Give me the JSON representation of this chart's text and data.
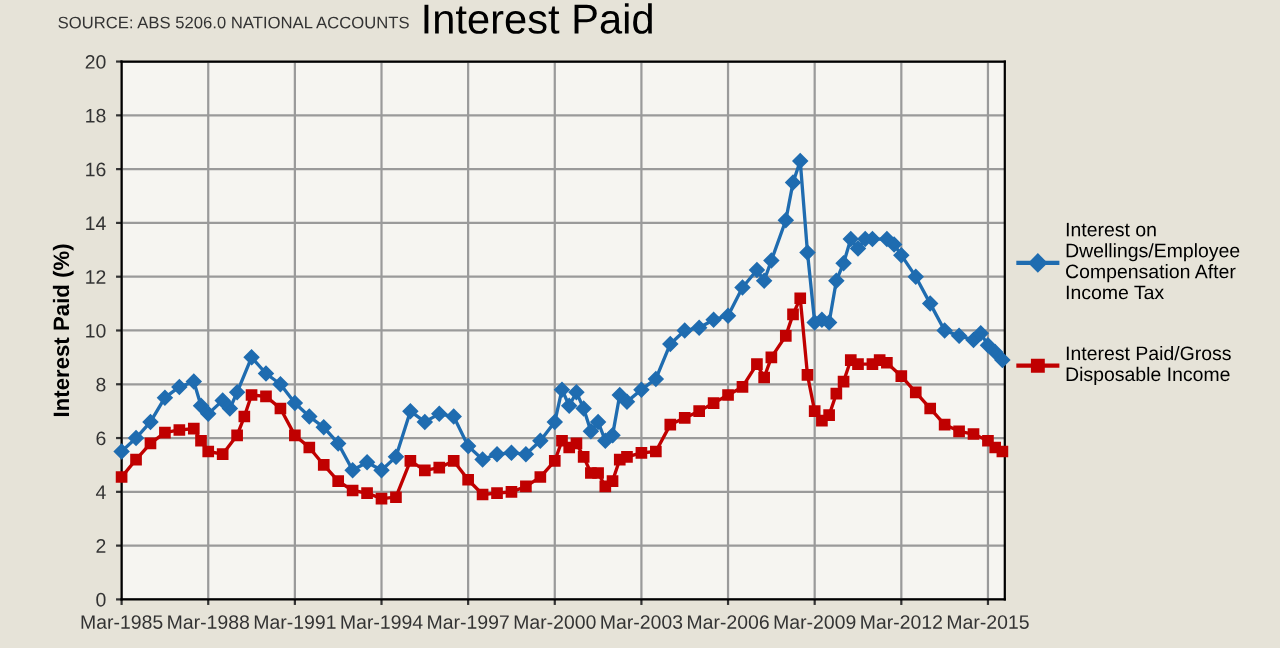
{
  "chart_data": {
    "type": "line",
    "title": "Interest Paid",
    "ylabel": "Interest Paid (%)",
    "annotations": [
      "SOURCE: ABS 5206.0 NATIONAL ACCOUNTS"
    ],
    "xlim": [
      "1985-03",
      "2015-10"
    ],
    "xticks": [
      {
        "value": "1985-03",
        "label": "Mar-1985"
      },
      {
        "value": "1988-03",
        "label": "Mar-1988"
      },
      {
        "value": "1991-03",
        "label": "Mar-1991"
      },
      {
        "value": "1994-03",
        "label": "Mar-1994"
      },
      {
        "value": "1997-03",
        "label": "Mar-1997"
      },
      {
        "value": "2000-03",
        "label": "Mar-2000"
      },
      {
        "value": "2003-03",
        "label": "Mar-2003"
      },
      {
        "value": "2006-03",
        "label": "Mar-2006"
      },
      {
        "value": "2009-03",
        "label": "Mar-2009"
      },
      {
        "value": "2012-03",
        "label": "Mar-2012"
      },
      {
        "value": "2015-03",
        "label": "Mar-2015"
      }
    ],
    "ylim": [
      0,
      20
    ],
    "yticks": [
      0,
      2,
      4,
      6,
      8,
      10,
      12,
      14,
      16,
      18,
      20
    ],
    "grid": true,
    "legend": "right",
    "line_style": "solid",
    "series": [
      {
        "name": "Interest on Dwellings/Employee Compensation After Income Tax",
        "color": "#1f6cb0",
        "marker": "diamond",
        "x": [
          "1985-03",
          "1985-09",
          "1986-03",
          "1986-09",
          "1987-03",
          "1987-09",
          "1987-12",
          "1988-03",
          "1988-09",
          "1988-12",
          "1989-03",
          "1989-09",
          "1990-03",
          "1990-09",
          "1991-03",
          "1991-09",
          "1992-03",
          "1992-09",
          "1993-03",
          "1993-09",
          "1994-03",
          "1994-09",
          "1995-03",
          "1995-09",
          "1996-03",
          "1996-09",
          "1997-03",
          "1997-09",
          "1998-03",
          "1998-09",
          "1999-03",
          "1999-09",
          "2000-03",
          "2000-06",
          "2000-09",
          "2000-12",
          "2001-03",
          "2001-06",
          "2001-09",
          "2001-12",
          "2002-03",
          "2002-06",
          "2002-09",
          "2003-03",
          "2003-09",
          "2004-03",
          "2004-09",
          "2005-03",
          "2005-09",
          "2006-03",
          "2006-09",
          "2007-03",
          "2007-06",
          "2007-09",
          "2008-03",
          "2008-06",
          "2008-09",
          "2008-12",
          "2009-03",
          "2009-06",
          "2009-09",
          "2009-12",
          "2010-03",
          "2010-06",
          "2010-09",
          "2010-12",
          "2011-03",
          "2011-09",
          "2011-12",
          "2012-03",
          "2012-09",
          "2013-03",
          "2013-09",
          "2014-03",
          "2014-09",
          "2014-12",
          "2015-03",
          "2015-06",
          "2015-09"
        ],
        "values": [
          5.5,
          6.0,
          6.6,
          7.5,
          7.9,
          8.1,
          7.2,
          6.9,
          7.4,
          7.1,
          7.7,
          9.0,
          8.4,
          8.0,
          7.3,
          6.8,
          6.4,
          5.8,
          4.8,
          5.1,
          4.8,
          5.3,
          7.0,
          6.6,
          6.9,
          6.8,
          5.7,
          5.2,
          5.4,
          5.45,
          5.4,
          5.9,
          6.6,
          7.8,
          7.2,
          7.7,
          7.1,
          6.25,
          6.6,
          5.9,
          6.1,
          7.6,
          7.35,
          7.8,
          8.2,
          9.5,
          10.0,
          10.1,
          10.4,
          10.55,
          11.6,
          12.25,
          11.85,
          12.6,
          14.1,
          15.5,
          16.3,
          12.9,
          10.3,
          10.4,
          10.3,
          11.85,
          12.5,
          13.4,
          13.05,
          13.4,
          13.4,
          13.4,
          13.2,
          12.8,
          12.0,
          11.0,
          10.0,
          9.8,
          9.65,
          9.9,
          9.45,
          9.2,
          8.9
        ]
      },
      {
        "name": "Interest Paid/Gross Disposable Income",
        "color": "#c00000",
        "marker": "square",
        "x": [
          "1985-03",
          "1985-09",
          "1986-03",
          "1986-09",
          "1987-03",
          "1987-09",
          "1987-12",
          "1988-03",
          "1988-09",
          "1989-03",
          "1989-06",
          "1989-09",
          "1990-03",
          "1990-09",
          "1991-03",
          "1991-09",
          "1992-03",
          "1992-09",
          "1993-03",
          "1993-09",
          "1994-03",
          "1994-09",
          "1995-03",
          "1995-09",
          "1996-03",
          "1996-09",
          "1997-03",
          "1997-09",
          "1998-03",
          "1998-09",
          "1999-03",
          "1999-09",
          "2000-03",
          "2000-06",
          "2000-09",
          "2000-12",
          "2001-03",
          "2001-06",
          "2001-09",
          "2001-12",
          "2002-03",
          "2002-06",
          "2002-09",
          "2003-03",
          "2003-09",
          "2004-03",
          "2004-09",
          "2005-03",
          "2005-09",
          "2006-03",
          "2006-09",
          "2007-03",
          "2007-06",
          "2007-09",
          "2008-03",
          "2008-06",
          "2008-09",
          "2008-12",
          "2009-03",
          "2009-06",
          "2009-09",
          "2009-12",
          "2010-03",
          "2010-06",
          "2010-09",
          "2011-03",
          "2011-06",
          "2011-09",
          "2012-03",
          "2012-09",
          "2013-03",
          "2013-09",
          "2014-03",
          "2014-09",
          "2015-03",
          "2015-06",
          "2015-09"
        ],
        "values": [
          4.55,
          5.2,
          5.8,
          6.2,
          6.3,
          6.35,
          5.9,
          5.5,
          5.4,
          6.1,
          6.8,
          7.6,
          7.55,
          7.1,
          6.1,
          5.65,
          5.0,
          4.4,
          4.05,
          3.95,
          3.75,
          3.8,
          5.15,
          4.8,
          4.9,
          5.15,
          4.45,
          3.9,
          3.95,
          4.0,
          4.2,
          4.55,
          5.15,
          5.9,
          5.65,
          5.8,
          5.3,
          4.7,
          4.7,
          4.2,
          4.4,
          5.2,
          5.3,
          5.45,
          5.5,
          6.5,
          6.75,
          7.0,
          7.3,
          7.6,
          7.9,
          8.75,
          8.25,
          9.0,
          9.8,
          10.6,
          11.2,
          8.35,
          7.0,
          6.65,
          6.85,
          7.65,
          8.1,
          8.9,
          8.75,
          8.75,
          8.9,
          8.8,
          8.3,
          7.7,
          7.1,
          6.5,
          6.25,
          6.15,
          5.9,
          5.65,
          5.5
        ]
      }
    ]
  }
}
